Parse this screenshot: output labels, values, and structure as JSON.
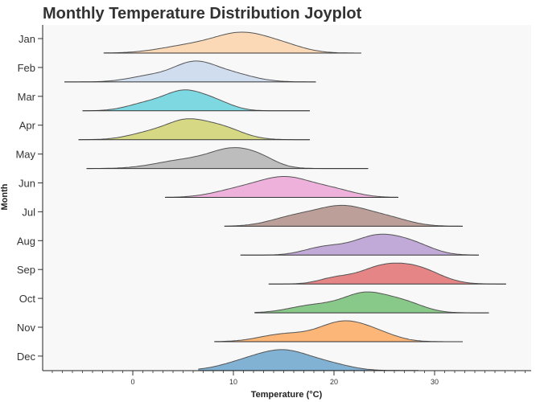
{
  "chart_data": {
    "type": "joyplot",
    "title": "Monthly Temperature Distribution Joyplot",
    "xlabel": "Temperature (°C)",
    "ylabel": "Month",
    "xlim": [
      -9,
      39
    ],
    "xticks": [
      0,
      10,
      20,
      30
    ],
    "grid": false,
    "background_color": "#f8f8f8",
    "series": [
      {
        "name": "Jan",
        "color": "#ffbf80",
        "range": [
          -2.9,
          22.7
        ],
        "peaks": [
          [
            5.8,
            3.0,
            0.42
          ],
          [
            10.9,
            2.6,
            1.0
          ],
          [
            15.0,
            2.2,
            0.35
          ]
        ]
      },
      {
        "name": "Feb",
        "color": "#aec7e8",
        "range": [
          -6.8,
          18.2
        ],
        "peaks": [
          [
            1.8,
            2.2,
            0.35
          ],
          [
            6.0,
            2.0,
            1.0
          ],
          [
            9.5,
            2.4,
            0.5
          ]
        ]
      },
      {
        "name": "Mar",
        "color": "#17becf",
        "range": [
          -5.0,
          17.6
        ],
        "peaks": [
          [
            1.5,
            2.0,
            0.45
          ],
          [
            5.0,
            1.8,
            1.0
          ],
          [
            8.0,
            1.8,
            0.55
          ]
        ]
      },
      {
        "name": "Apr",
        "color": "#bcbd22",
        "range": [
          -5.4,
          17.6
        ],
        "peaks": [
          [
            2.0,
            2.2,
            0.55
          ],
          [
            5.2,
            1.8,
            1.0
          ],
          [
            8.5,
            2.2,
            0.95
          ]
        ]
      },
      {
        "name": "May",
        "color": "#8c8c8c",
        "range": [
          -4.6,
          23.4
        ],
        "peaks": [
          [
            5.0,
            2.8,
            0.42
          ],
          [
            10.2,
            2.4,
            1.0
          ],
          [
            13.0,
            1.5,
            0.2
          ]
        ]
      },
      {
        "name": "Jun",
        "color": "#e377c2",
        "range": [
          3.2,
          26.4
        ],
        "peaks": [
          [
            10.5,
            2.5,
            0.38
          ],
          [
            15.2,
            2.6,
            1.0
          ],
          [
            20.0,
            2.2,
            0.35
          ]
        ]
      },
      {
        "name": "Jul",
        "color": "#8c564b",
        "range": [
          9.1,
          32.8
        ],
        "peaks": [
          [
            16.0,
            2.4,
            0.45
          ],
          [
            20.9,
            2.6,
            1.0
          ],
          [
            25.5,
            2.2,
            0.35
          ]
        ]
      },
      {
        "name": "Aug",
        "color": "#9467bd",
        "range": [
          10.7,
          34.4
        ],
        "peaks": [
          [
            19.0,
            2.0,
            0.4
          ],
          [
            24.3,
            2.4,
            1.0
          ],
          [
            28.0,
            2.0,
            0.45
          ]
        ]
      },
      {
        "name": "Sep",
        "color": "#d62728",
        "range": [
          13.5,
          37.1
        ],
        "peaks": [
          [
            20.0,
            1.6,
            0.3
          ],
          [
            24.8,
            2.4,
            1.0
          ],
          [
            28.6,
            2.2,
            0.75
          ]
        ]
      },
      {
        "name": "Oct",
        "color": "#2ca02c",
        "range": [
          12.1,
          35.4
        ],
        "peaks": [
          [
            18.0,
            2.4,
            0.4
          ],
          [
            23.1,
            2.2,
            1.0
          ],
          [
            27.0,
            2.0,
            0.5
          ]
        ]
      },
      {
        "name": "Nov",
        "color": "#ff7f0e",
        "range": [
          8.1,
          32.8
        ],
        "peaks": [
          [
            15.0,
            2.4,
            0.38
          ],
          [
            20.9,
            2.4,
            1.0
          ],
          [
            24.5,
            2.0,
            0.3
          ]
        ]
      },
      {
        "name": "Dec",
        "color": "#1f77b4",
        "range": [
          6.5,
          28.4
        ],
        "peaks": [
          [
            11.5,
            2.6,
            0.55
          ],
          [
            15.3,
            2.4,
            1.0
          ],
          [
            19.5,
            2.2,
            0.35
          ]
        ]
      }
    ]
  }
}
